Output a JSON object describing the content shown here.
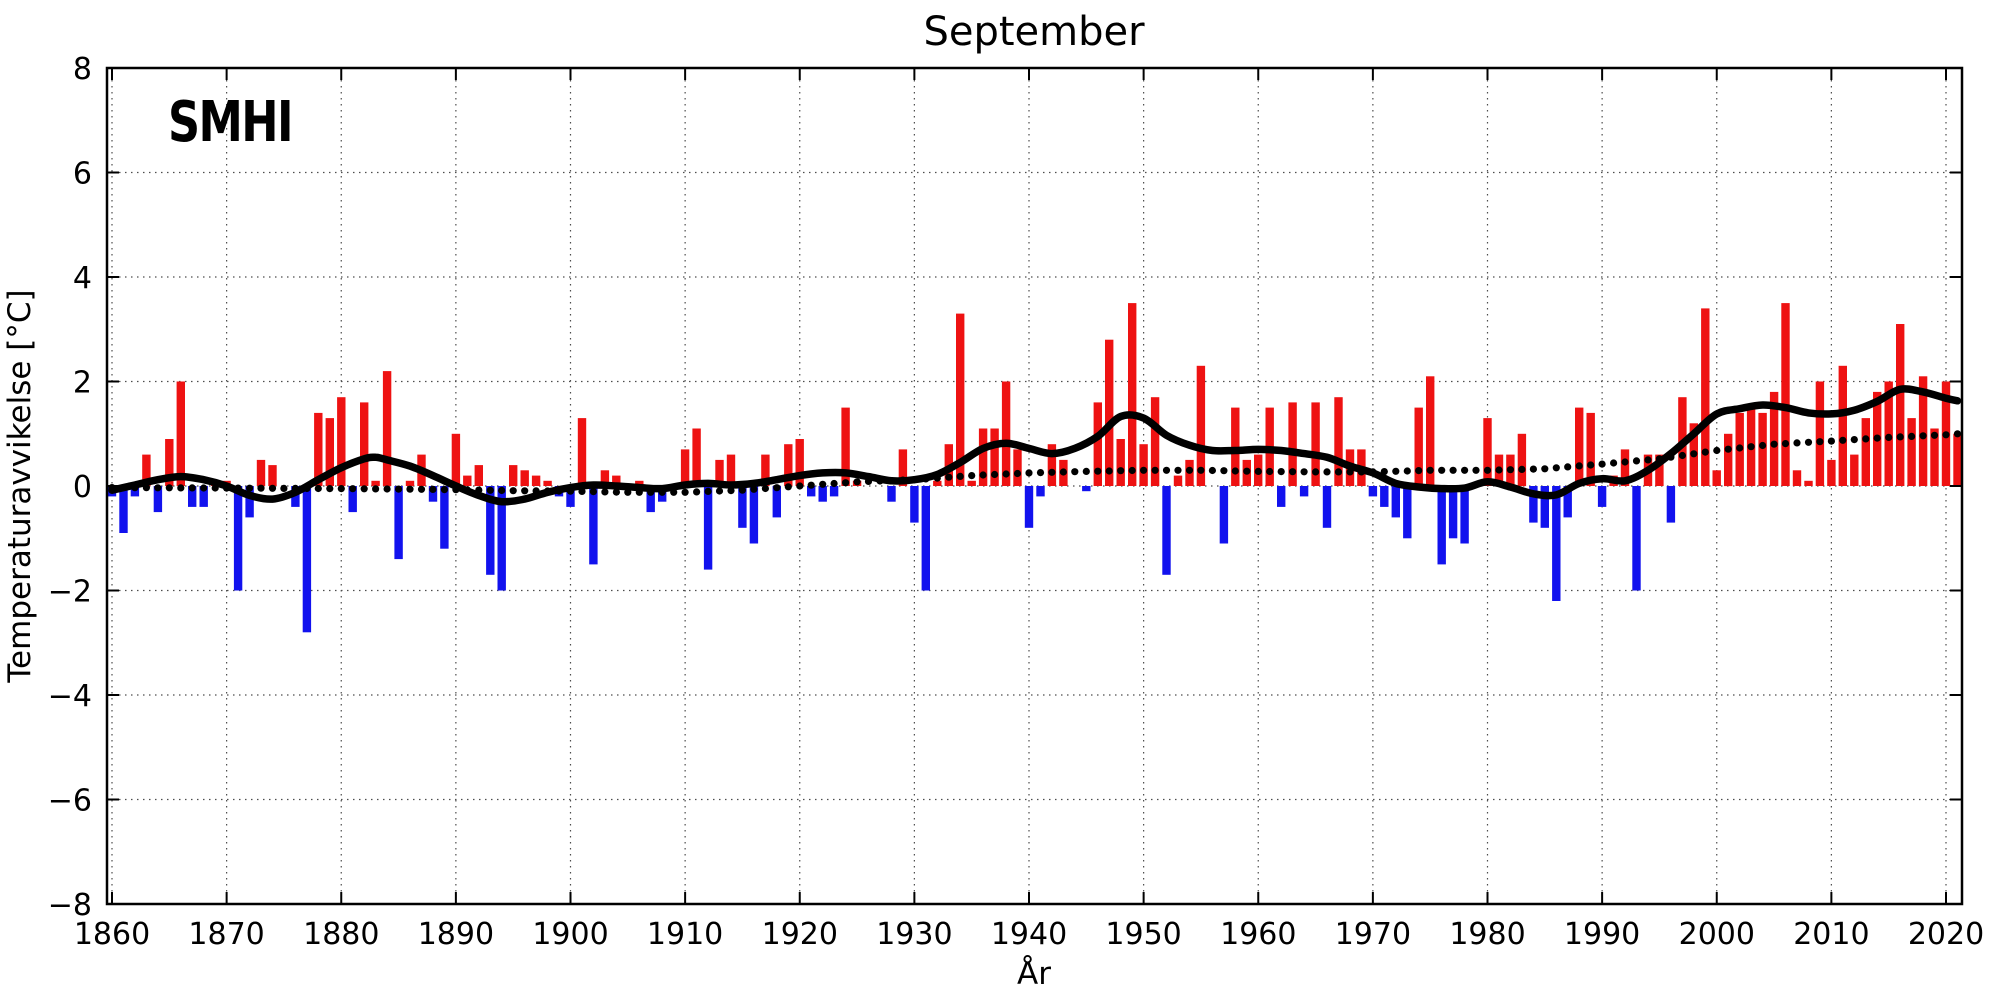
{
  "logo": {
    "text": "SMHI"
  },
  "chart_data": {
    "type": "bar",
    "title": "September",
    "xlabel": "År",
    "ylabel": "Temperaturavvikelse [°C]",
    "ylim": [
      -8,
      8
    ],
    "xlim": [
      1859.5,
      2021.5
    ],
    "grid": "dotted",
    "legend_position": "none",
    "yticks": [
      -8,
      -6,
      -4,
      -2,
      0,
      2,
      4,
      6,
      8
    ],
    "yticklabels": [
      "−8",
      "−6",
      "−4",
      "−2",
      "0",
      "2",
      "4",
      "6",
      "8"
    ],
    "xticks": [
      1860,
      1870,
      1880,
      1890,
      1900,
      1910,
      1920,
      1930,
      1940,
      1950,
      1960,
      1970,
      1980,
      1990,
      2000,
      2010,
      2020
    ],
    "xticklabels": [
      "1860",
      "1870",
      "1880",
      "1890",
      "1900",
      "1910",
      "1920",
      "1930",
      "1940",
      "1950",
      "1960",
      "1970",
      "1980",
      "1990",
      "2000",
      "2010",
      "2020"
    ],
    "bar_color_positive": "#ee1212",
    "bar_color_negative": "#1212ee",
    "line_color": "#000000",
    "year_start": 1860,
    "year_end": 2021,
    "values": [
      -0.2,
      -0.9,
      -0.2,
      0.6,
      -0.5,
      0.9,
      2.0,
      -0.4,
      -0.4,
      0.1,
      0.1,
      -2.0,
      -0.6,
      0.5,
      0.4,
      0.0,
      -0.4,
      -2.8,
      1.4,
      1.3,
      1.7,
      -0.5,
      1.6,
      0.1,
      2.2,
      -1.4,
      0.1,
      0.6,
      -0.3,
      -1.2,
      1.0,
      0.2,
      0.4,
      -1.7,
      -2.0,
      0.4,
      0.3,
      0.2,
      0.1,
      -0.2,
      -0.4,
      1.3,
      -1.5,
      0.3,
      0.2,
      0.0,
      0.1,
      -0.5,
      -0.3,
      0.0,
      0.7,
      1.1,
      -1.6,
      0.5,
      0.6,
      -0.8,
      -1.1,
      0.6,
      -0.6,
      0.8,
      0.9,
      -0.2,
      -0.3,
      -0.2,
      1.5,
      0.1,
      0.0,
      0.0,
      -0.3,
      0.7,
      -0.7,
      -2.0,
      0.1,
      0.8,
      3.3,
      0.1,
      1.1,
      1.1,
      2.0,
      0.7,
      -0.8,
      -0.2,
      0.8,
      0.5,
      0.0,
      -0.1,
      1.6,
      2.8,
      0.9,
      3.5,
      0.8,
      1.7,
      -1.7,
      0.2,
      0.5,
      2.3,
      0.0,
      -1.1,
      1.5,
      0.5,
      0.6,
      1.5,
      -0.4,
      1.6,
      -0.2,
      1.6,
      -0.8,
      1.7,
      0.7,
      0.7,
      -0.2,
      -0.4,
      -0.6,
      -1.0,
      1.5,
      2.1,
      -1.5,
      -1.0,
      -1.1,
      0.0,
      1.3,
      0.6,
      0.6,
      1.0,
      -0.7,
      -0.8,
      -2.2,
      -0.6,
      1.5,
      1.4,
      -0.4,
      0.2,
      0.7,
      -2.0,
      0.6,
      0.6,
      -0.7,
      1.7,
      1.2,
      3.4,
      0.3,
      1.0,
      1.4,
      1.5,
      1.4,
      1.8,
      3.5,
      0.3,
      0.1,
      2.0,
      0.5,
      2.3,
      0.6,
      1.3,
      1.8,
      2.0,
      3.1,
      1.3,
      2.1,
      1.1,
      2.0,
      1.0
    ],
    "smoothed_line": {
      "name": "smoothed (filtered) anomaly",
      "style": "solid",
      "years": [
        1860,
        1862,
        1864,
        1866,
        1868,
        1870,
        1872,
        1874,
        1876,
        1878,
        1880,
        1882,
        1883,
        1884,
        1886,
        1888,
        1890,
        1892,
        1894,
        1896,
        1898,
        1900,
        1902,
        1904,
        1906,
        1908,
        1910,
        1912,
        1914,
        1916,
        1918,
        1920,
        1922,
        1924,
        1926,
        1928,
        1930,
        1932,
        1934,
        1936,
        1938,
        1940,
        1942,
        1944,
        1946,
        1948,
        1950,
        1952,
        1954,
        1956,
        1958,
        1960,
        1962,
        1964,
        1966,
        1968,
        1970,
        1972,
        1974,
        1976,
        1978,
        1980,
        1982,
        1984,
        1986,
        1988,
        1990,
        1992,
        1994,
        1996,
        1998,
        2000,
        2002,
        2004,
        2006,
        2008,
        2010,
        2012,
        2014,
        2016,
        2018,
        2020,
        2021
      ],
      "values": [
        -0.08,
        0.02,
        0.12,
        0.18,
        0.12,
        0.0,
        -0.18,
        -0.25,
        -0.12,
        0.12,
        0.35,
        0.52,
        0.55,
        0.5,
        0.38,
        0.2,
        0.0,
        -0.18,
        -0.3,
        -0.25,
        -0.12,
        -0.03,
        0.02,
        0.0,
        -0.03,
        -0.05,
        0.02,
        0.05,
        0.02,
        0.05,
        0.12,
        0.2,
        0.25,
        0.25,
        0.18,
        0.1,
        0.12,
        0.22,
        0.45,
        0.72,
        0.82,
        0.72,
        0.62,
        0.72,
        0.95,
        1.33,
        1.3,
        0.97,
        0.78,
        0.68,
        0.68,
        0.7,
        0.68,
        0.62,
        0.55,
        0.38,
        0.25,
        0.05,
        -0.02,
        -0.05,
        -0.04,
        0.08,
        -0.02,
        -0.15,
        -0.17,
        0.05,
        0.14,
        0.1,
        0.3,
        0.62,
        1.0,
        1.38,
        1.48,
        1.55,
        1.5,
        1.4,
        1.38,
        1.45,
        1.62,
        1.85,
        1.8,
        1.68,
        1.63
      ]
    },
    "reference_line": {
      "name": "reference trend (dotted)",
      "style": "dotted",
      "years": [
        1860,
        1870,
        1880,
        1890,
        1895,
        1900,
        1905,
        1910,
        1915,
        1920,
        1925,
        1930,
        1935,
        1940,
        1945,
        1950,
        1955,
        1960,
        1965,
        1970,
        1975,
        1980,
        1985,
        1990,
        1995,
        2000,
        2005,
        2010,
        2015,
        2020,
        2021
      ],
      "values": [
        -0.03,
        -0.04,
        -0.05,
        -0.07,
        -0.09,
        -0.1,
        -0.12,
        -0.12,
        -0.08,
        0.0,
        0.08,
        0.12,
        0.2,
        0.25,
        0.28,
        0.3,
        0.3,
        0.28,
        0.27,
        0.27,
        0.3,
        0.3,
        0.33,
        0.42,
        0.52,
        0.68,
        0.8,
        0.86,
        0.93,
        0.98,
        1.0
      ]
    }
  }
}
